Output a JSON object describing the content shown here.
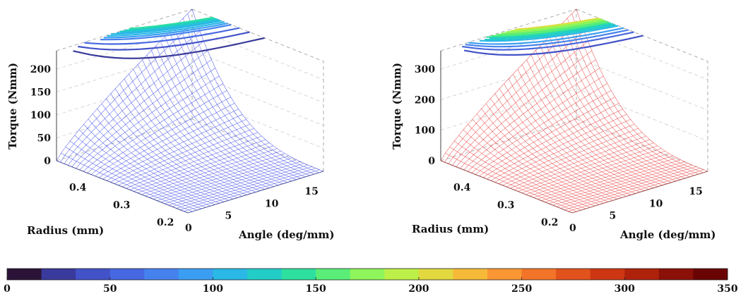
{
  "chart_data": [
    {
      "type": "surface",
      "color": "#3a46e8",
      "xlabel": "Radius (mm)",
      "ylabel": "Angle (deg/mm)",
      "zlabel": "Torque (Nmm)",
      "xticks": [
        "0.2",
        "0.3",
        "0.4"
      ],
      "yticks": [
        "0",
        "5",
        "10",
        "15"
      ],
      "zticks": [
        "0",
        "50",
        "100",
        "150",
        "200"
      ],
      "xlim": [
        0.2,
        0.5
      ],
      "ylim": [
        0,
        17
      ],
      "zlim": [
        0,
        240
      ],
      "z_at_max_radius_max_angle": 240,
      "grid": true,
      "contour_values": [
        140,
        135,
        130,
        125,
        120,
        115,
        110,
        100,
        90,
        80,
        60,
        40,
        20
      ]
    },
    {
      "type": "surface",
      "color": "#e83a3a",
      "xlabel": "Radius (mm)",
      "ylabel": "Angle (deg/mm)",
      "zlabel": "Torque (Nmm)",
      "xticks": [
        "0.2",
        "0.3",
        "0.4"
      ],
      "yticks": [
        "0",
        "5",
        "10",
        "15"
      ],
      "zticks": [
        "0",
        "100",
        "200",
        "300"
      ],
      "xlim": [
        0.2,
        0.5
      ],
      "ylim": [
        0,
        17
      ],
      "zlim": [
        0,
        360
      ],
      "z_at_max_radius_max_angle": 360,
      "grid": true,
      "contour_values": [
        200,
        190,
        180,
        170,
        160,
        150,
        140,
        130,
        120,
        110,
        90,
        75,
        60,
        40
      ]
    }
  ],
  "colorbar": {
    "ticks": [
      "0",
      "50",
      "100",
      "150",
      "200",
      "250",
      "300",
      "350"
    ],
    "range": [
      0,
      350
    ],
    "colors": [
      "#2b1338",
      "#3a3a9c",
      "#4252c8",
      "#4668e0",
      "#4682ee",
      "#3c9ef2",
      "#2ab8e6",
      "#22cdc8",
      "#2ee0a0",
      "#5aee78",
      "#8ef55a",
      "#bcf048",
      "#e2d840",
      "#f6ba38",
      "#fa9634",
      "#f27428",
      "#e2521c",
      "#cc3612",
      "#ae220c",
      "#8a1008",
      "#6a0404"
    ]
  }
}
